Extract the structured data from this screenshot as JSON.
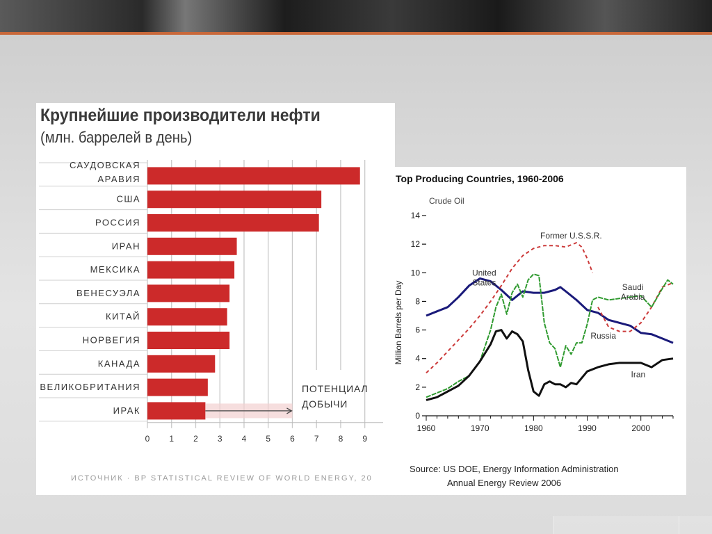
{
  "colors": {
    "bar": "#cc2a2a",
    "grid": "#c8c8c8",
    "text": "#333333"
  },
  "chart_data": [
    {
      "type": "bar",
      "orientation": "horizontal",
      "title": "Крупнейшие производители нефти",
      "subtitle": "(млн. баррелей в день)",
      "categories": [
        [
          "САУДОВСКАЯ",
          "АРАВИЯ"
        ],
        [
          "США"
        ],
        [
          "РОССИЯ"
        ],
        [
          "ИРАН"
        ],
        [
          "МЕКСИКА"
        ],
        [
          "ВЕНЕСУЭЛА"
        ],
        [
          "КИТАЙ"
        ],
        [
          "НОРВЕГИЯ"
        ],
        [
          "КАНАДА"
        ],
        [
          "ВЕЛИКОБРИТАНИЯ"
        ],
        [
          "ИРАК"
        ]
      ],
      "values": [
        8.8,
        7.2,
        7.1,
        3.7,
        3.6,
        3.4,
        3.3,
        3.4,
        2.8,
        2.5,
        2.4
      ],
      "potential_value": 6,
      "annotation": [
        "ПОТЕНЦИАЛ",
        "ДОБЫЧИ"
      ],
      "xticks": [
        "0",
        "1",
        "2",
        "3",
        "4",
        "5",
        "6",
        "7",
        "8",
        "9"
      ],
      "xlim": [
        0,
        9.7
      ],
      "source": "ИСТОЧНИК · BP STATISTICAL REVIEW OF WORLD ENERGY, 20"
    },
    {
      "type": "line",
      "title": "Top Producing Countries, 1960-2006",
      "subtitle": "Crude Oil",
      "ylabel": "Million Barrels per Day",
      "xlim": [
        1960,
        2006
      ],
      "ylim": [
        0,
        14
      ],
      "xticks": [
        "1960",
        "1970",
        "1980",
        "1990",
        "2000"
      ],
      "yticks": [
        "0",
        "2",
        "4",
        "6",
        "8",
        "10",
        "12",
        "14"
      ],
      "source": [
        "Source: US DOE, Energy Information Administration",
        "Annual Energy Review 2006"
      ],
      "series": [
        {
          "name": "United States",
          "label_lines": [
            "United",
            "States"
          ],
          "color": "#1a1a7a",
          "style": "solid",
          "label_pos": [
            1970.8,
            9.8
          ],
          "x": [
            1960,
            1962,
            1964,
            1966,
            1968,
            1970,
            1972,
            1974,
            1976,
            1978,
            1980,
            1982,
            1984,
            1985,
            1986,
            1988,
            1990,
            1992,
            1994,
            1996,
            1998,
            2000,
            2002,
            2004,
            2006
          ],
          "y": [
            7.0,
            7.3,
            7.6,
            8.3,
            9.1,
            9.6,
            9.4,
            8.8,
            8.1,
            8.7,
            8.6,
            8.6,
            8.8,
            9.0,
            8.7,
            8.1,
            7.4,
            7.2,
            6.7,
            6.5,
            6.3,
            5.8,
            5.7,
            5.4,
            5.1
          ]
        },
        {
          "name": "Former U.S.S.R.",
          "label_lines": [
            "Former U.S.S.R."
          ],
          "color": "#cc3a3a",
          "style": "dashed",
          "label_pos": [
            1987.0,
            12.4
          ],
          "x": [
            1960,
            1962,
            1964,
            1966,
            1968,
            1970,
            1972,
            1974,
            1976,
            1978,
            1980,
            1982,
            1984,
            1986,
            1988,
            1989,
            1990,
            1991
          ],
          "y": [
            3.0,
            3.7,
            4.5,
            5.3,
            6.1,
            7.0,
            8.0,
            9.1,
            10.3,
            11.2,
            11.7,
            11.9,
            11.9,
            11.8,
            12.1,
            11.8,
            11.0,
            10.0
          ]
        },
        {
          "name": "Russia",
          "label_lines": [
            "Russia"
          ],
          "color": "#cc3a3a",
          "style": "dashed",
          "label_pos": [
            1993.0,
            5.4
          ],
          "x": [
            1992,
            1994,
            1996,
            1998,
            2000,
            2002,
            2004,
            2006
          ],
          "y": [
            7.6,
            6.2,
            5.9,
            5.9,
            6.5,
            7.6,
            9.0,
            9.3
          ]
        },
        {
          "name": "Saudi Arabia",
          "label_lines": [
            "Saudi",
            "Arabia"
          ],
          "color": "#2f9a2f",
          "style": "solid",
          "label_pos": [
            1998.5,
            8.8
          ],
          "x": [
            1960,
            1962,
            1964,
            1966,
            1968,
            1970,
            1972,
            1973,
            1974,
            1975,
            1976,
            1977,
            1978,
            1979,
            1980,
            1981,
            1982,
            1983,
            1984,
            1985,
            1986,
            1987,
            1988,
            1989,
            1990,
            1991,
            1992,
            1994,
            1996,
            1998,
            2000,
            2002,
            2004,
            2005,
            2006
          ],
          "y": [
            1.3,
            1.6,
            1.9,
            2.4,
            2.8,
            3.8,
            6.0,
            7.6,
            8.5,
            7.1,
            8.6,
            9.2,
            8.3,
            9.5,
            9.9,
            9.8,
            6.5,
            5.1,
            4.7,
            3.4,
            4.9,
            4.3,
            5.1,
            5.1,
            6.4,
            8.1,
            8.3,
            8.1,
            8.2,
            8.3,
            8.4,
            7.6,
            8.9,
            9.5,
            9.2
          ]
        },
        {
          "name": "Iran",
          "label_lines": [
            "Iran"
          ],
          "color": "#111111",
          "style": "solid",
          "label_pos": [
            1999.5,
            2.7
          ],
          "x": [
            1960,
            1962,
            1964,
            1966,
            1968,
            1970,
            1972,
            1973,
            1974,
            1975,
            1976,
            1977,
            1978,
            1979,
            1980,
            1981,
            1982,
            1983,
            1984,
            1985,
            1986,
            1987,
            1988,
            1990,
            1992,
            1994,
            1996,
            1998,
            2000,
            2002,
            2004,
            2006
          ],
          "y": [
            1.1,
            1.3,
            1.7,
            2.1,
            2.8,
            3.8,
            5.0,
            5.9,
            6.0,
            5.4,
            5.9,
            5.7,
            5.2,
            3.2,
            1.7,
            1.4,
            2.2,
            2.4,
            2.2,
            2.2,
            2.0,
            2.3,
            2.2,
            3.1,
            3.4,
            3.6,
            3.7,
            3.7,
            3.7,
            3.4,
            3.9,
            4.0
          ]
        }
      ]
    }
  ]
}
